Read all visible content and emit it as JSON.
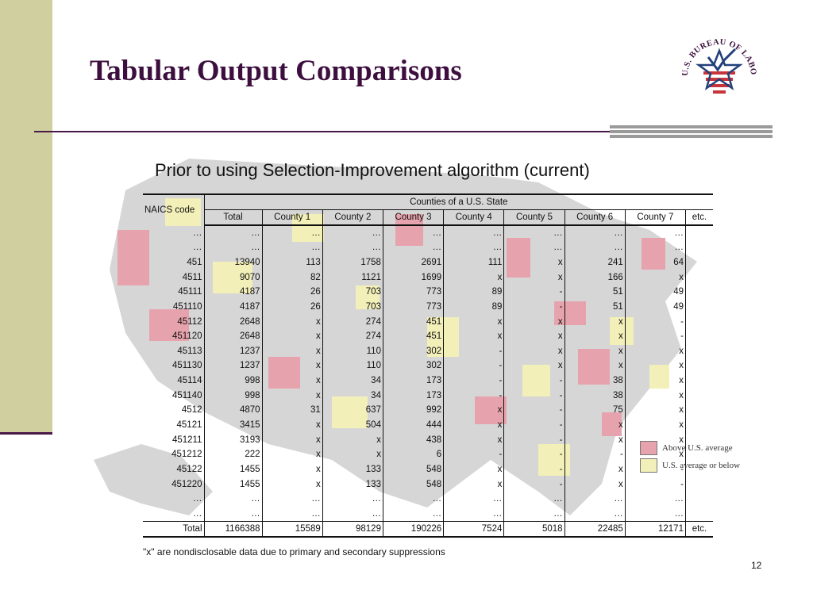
{
  "slide": {
    "title": "Tabular Output Comparisons",
    "subtitle": "Prior to using Selection-Improvement algorithm (current)",
    "footnote": "\"x\" are nondisclosable data due to primary and secondary suppressions",
    "page_number": "12",
    "logo_text": "U.S. BUREAU OF LABOR STATISTICS"
  },
  "colors": {
    "title": "#3d0f3f",
    "left_band": "#cfcf9f",
    "rule": "#4a1846",
    "above_average": "#e7a3ad",
    "below_average": "#f2f0b8"
  },
  "legend": {
    "above": "Above U.S. average",
    "below": "U.S. average or below"
  },
  "table": {
    "group_header": "Counties of a U.S. State",
    "first_header": "NAICS code",
    "columns": [
      "Total",
      "County 1",
      "County 2",
      "County 3",
      "County 4",
      "County 5",
      "County 6",
      "County 7",
      "etc."
    ],
    "rows": [
      [
        "…",
        "…",
        "…",
        "…",
        "…",
        "…",
        "…",
        "…",
        "…",
        ""
      ],
      [
        "…",
        "…",
        "…",
        "…",
        "…",
        "…",
        "…",
        "…",
        "…",
        ""
      ],
      [
        "451",
        "13940",
        "113",
        "1758",
        "2691",
        "111",
        "x",
        "241",
        "64",
        ""
      ],
      [
        "4511",
        "9070",
        "82",
        "1121",
        "1699",
        "x",
        "x",
        "166",
        "x",
        ""
      ],
      [
        "45111",
        "4187",
        "26",
        "703",
        "773",
        "89",
        "-",
        "51",
        "49",
        ""
      ],
      [
        "451110",
        "4187",
        "26",
        "703",
        "773",
        "89",
        "-",
        "51",
        "49",
        ""
      ],
      [
        "45112",
        "2648",
        "x",
        "274",
        "451",
        "x",
        "x",
        "x",
        "-",
        ""
      ],
      [
        "451120",
        "2648",
        "x",
        "274",
        "451",
        "x",
        "x",
        "x",
        "-",
        ""
      ],
      [
        "45113",
        "1237",
        "x",
        "110",
        "302",
        "-",
        "x",
        "x",
        "x",
        ""
      ],
      [
        "451130",
        "1237",
        "x",
        "110",
        "302",
        "-",
        "x",
        "x",
        "x",
        ""
      ],
      [
        "45114",
        "998",
        "x",
        "34",
        "173",
        "-",
        "-",
        "38",
        "x",
        ""
      ],
      [
        "451140",
        "998",
        "x",
        "34",
        "173",
        "-",
        "-",
        "38",
        "x",
        ""
      ],
      [
        "4512",
        "4870",
        "31",
        "637",
        "992",
        "x",
        "-",
        "75",
        "x",
        ""
      ],
      [
        "45121",
        "3415",
        "x",
        "504",
        "444",
        "x",
        "-",
        "x",
        "x",
        ""
      ],
      [
        "451211",
        "3193",
        "x",
        "x",
        "438",
        "x",
        "-",
        "x",
        "x",
        ""
      ],
      [
        "451212",
        "222",
        "x",
        "x",
        "6",
        "-",
        "-",
        "-",
        "x",
        ""
      ],
      [
        "45122",
        "1455",
        "x",
        "133",
        "548",
        "x",
        "-",
        "x",
        "-",
        ""
      ],
      [
        "451220",
        "1455",
        "x",
        "133",
        "548",
        "x",
        "-",
        "x",
        "-",
        ""
      ],
      [
        "…",
        "…",
        "…",
        "…",
        "…",
        "…",
        "…",
        "…",
        "…",
        ""
      ],
      [
        "…",
        "…",
        "…",
        "…",
        "…",
        "…",
        "…",
        "…",
        "…",
        ""
      ]
    ],
    "total_row": [
      "Total",
      "1166388",
      "15589",
      "98129",
      "190226",
      "7524",
      "5018",
      "22485",
      "12171",
      "etc."
    ]
  }
}
